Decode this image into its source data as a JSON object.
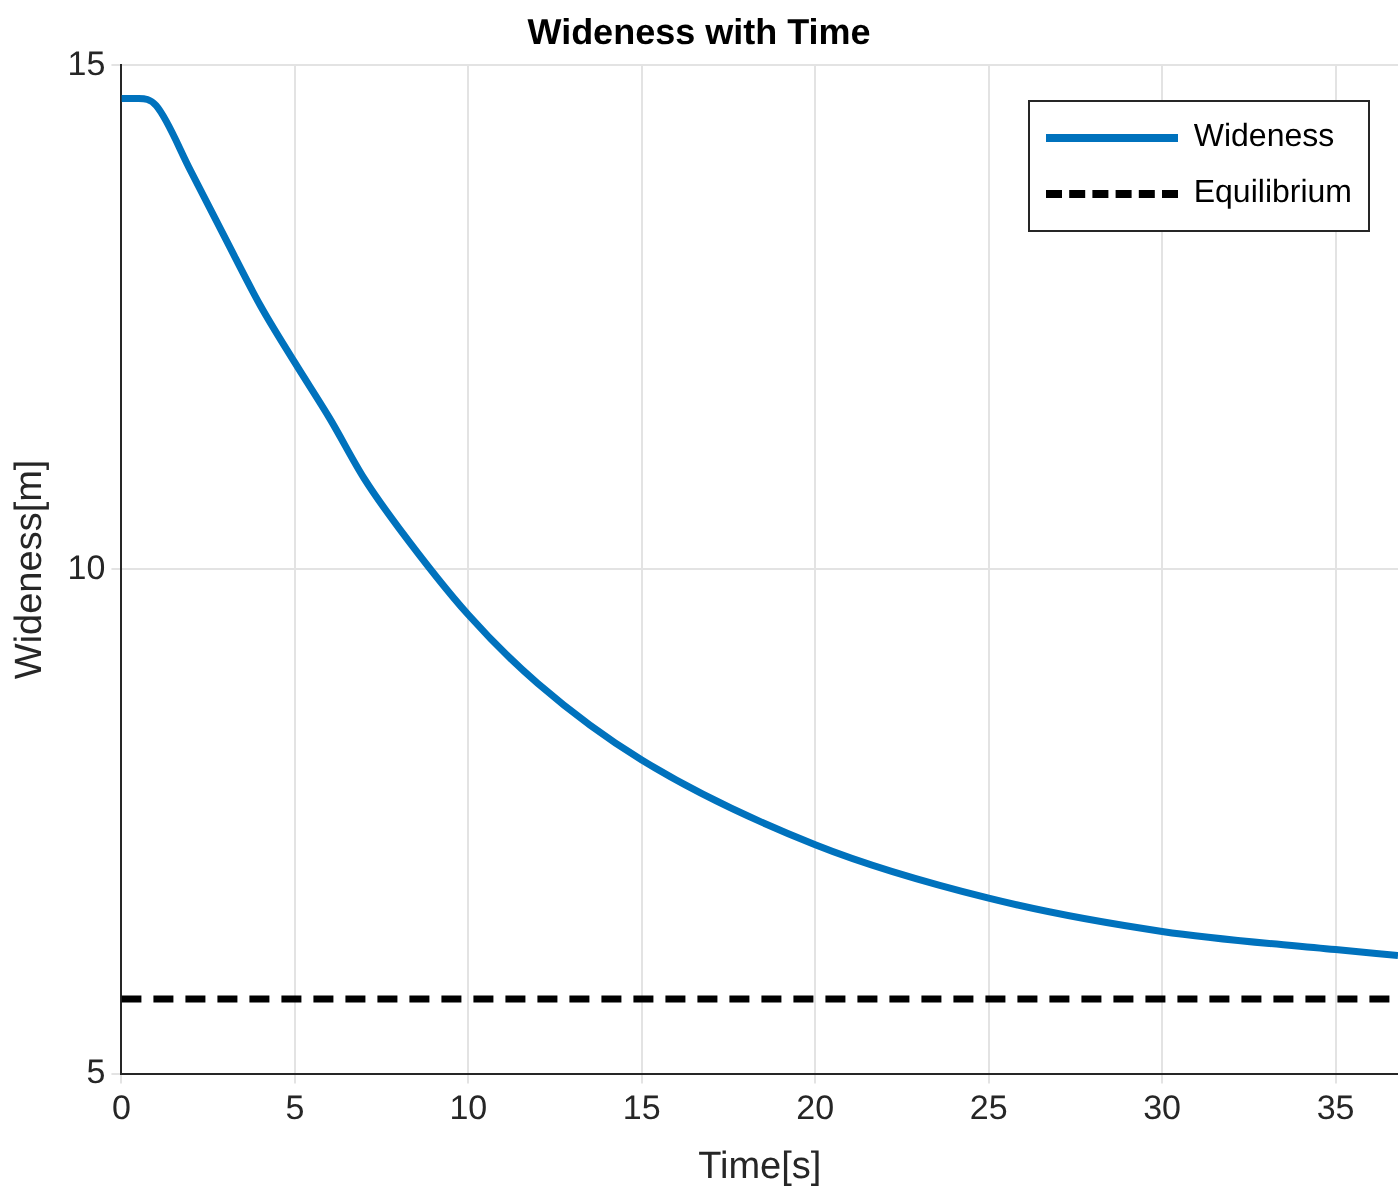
{
  "chart_data": {
    "type": "line",
    "title": "Wideness with Time",
    "xlabel": "Time[s]",
    "ylabel": "Wideness[m]",
    "xlim": [
      0,
      36.8
    ],
    "ylim": [
      5,
      15
    ],
    "xticks": [
      0,
      5,
      10,
      15,
      20,
      25,
      30,
      35
    ],
    "yticks": [
      5,
      10,
      15
    ],
    "grid": true,
    "legend": "top right",
    "marker": "none",
    "series": [
      {
        "name": "Wideness",
        "color": "#0072bd",
        "line_style": "solid",
        "x": [
          0,
          0.5,
          1,
          2,
          3,
          4,
          5,
          6,
          7,
          8,
          10,
          12,
          15,
          20,
          25,
          30,
          35,
          36.8
        ],
        "values": [
          14.67,
          14.67,
          14.6,
          13.95,
          13.28,
          12.62,
          12.05,
          11.5,
          10.9,
          10.41,
          9.55,
          8.87,
          8.11,
          7.27,
          6.74,
          6.41,
          6.23,
          6.17
        ]
      },
      {
        "name": "Equilibrium",
        "color": "#000000",
        "line_style": "dashed",
        "x": [
          0,
          36.8
        ],
        "values": [
          5.74,
          5.74
        ]
      }
    ]
  }
}
